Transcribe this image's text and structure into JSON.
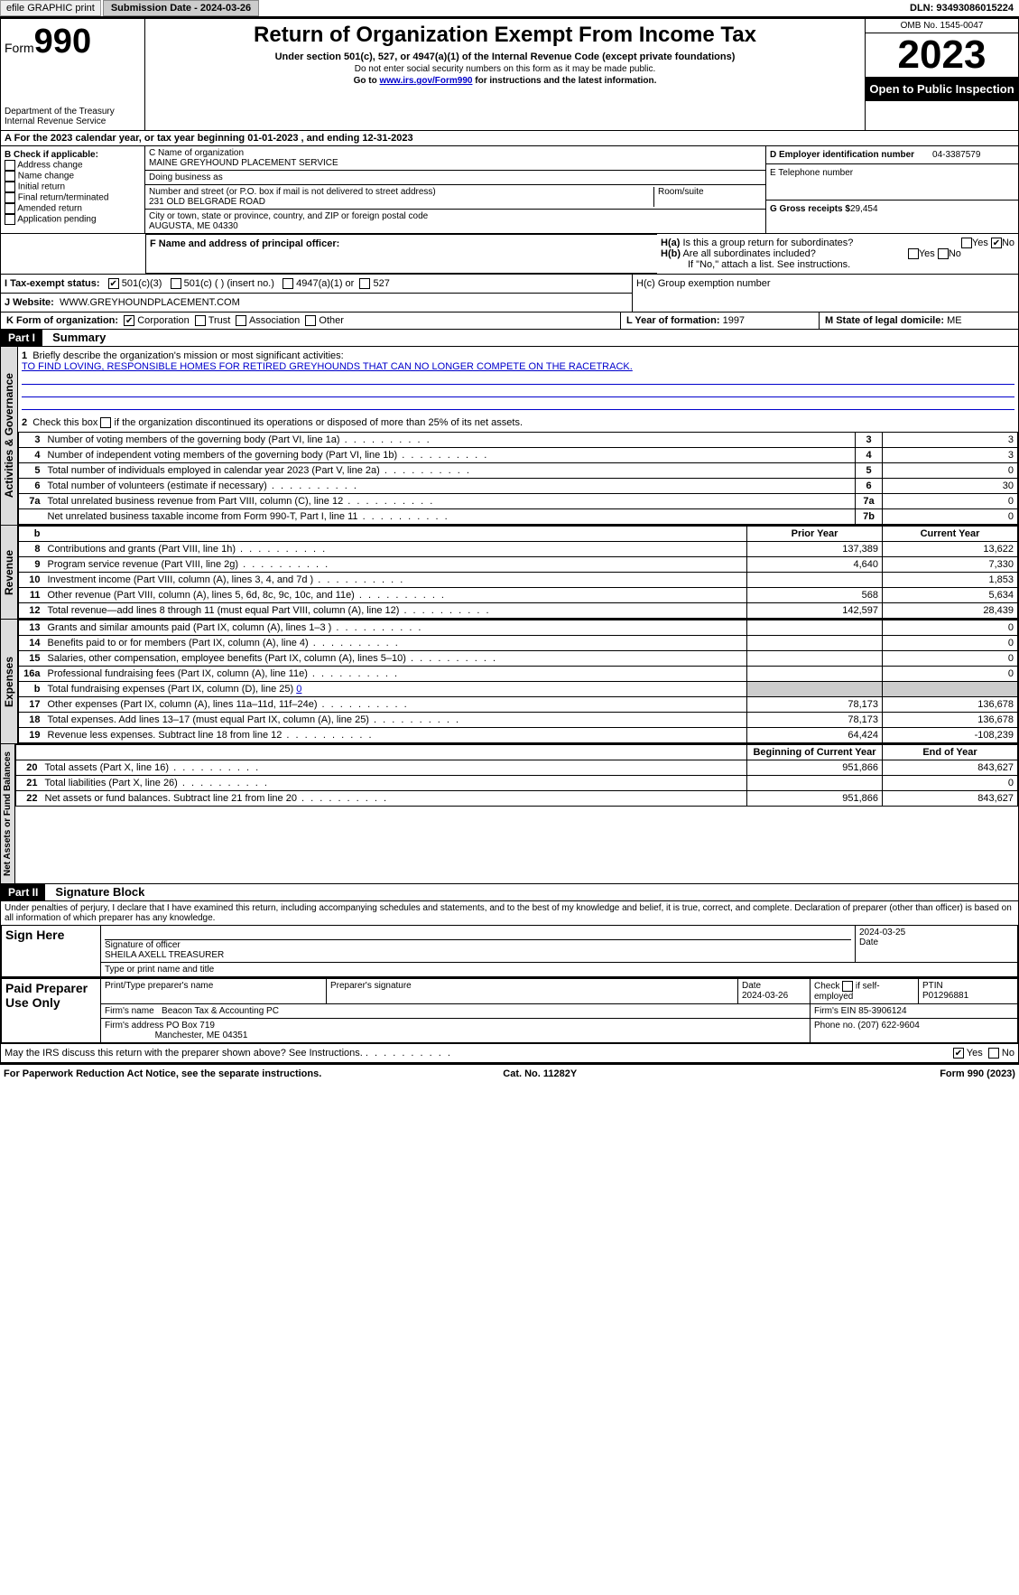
{
  "topbar": {
    "efile_btn": "efile GRAPHIC print",
    "submission_label": "Submission Date - 2024-03-26",
    "dln_label": "DLN: 93493086015224"
  },
  "header": {
    "form_word": "Form",
    "form_num": "990",
    "dept": "Department of the Treasury Internal Revenue Service",
    "title": "Return of Organization Exempt From Income Tax",
    "subtitle": "Under section 501(c), 527, or 4947(a)(1) of the Internal Revenue Code (except private foundations)",
    "note1": "Do not enter social security numbers on this form as it may be made public.",
    "note2_pre": "Go to ",
    "note2_link": "www.irs.gov/Form990",
    "note2_post": " for instructions and the latest information.",
    "omb": "OMB No. 1545-0047",
    "year": "2023",
    "open": "Open to Public Inspection"
  },
  "line_a": "For the 2023 calendar year, or tax year beginning 01-01-2023   , and ending 12-31-2023",
  "box_b": {
    "title": "B Check if applicable:",
    "items": [
      "Address change",
      "Name change",
      "Initial return",
      "Final return/terminated",
      "Amended return",
      "Application pending"
    ]
  },
  "box_c": {
    "name_lbl": "C Name of organization",
    "name": "MAINE GREYHOUND PLACEMENT SERVICE",
    "dba_lbl": "Doing business as",
    "street_lbl": "Number and street (or P.O. box if mail is not delivered to street address)",
    "street": "231 OLD BELGRADE ROAD",
    "room_lbl": "Room/suite",
    "city_lbl": "City or town, state or province, country, and ZIP or foreign postal code",
    "city": "AUGUSTA, ME  04330"
  },
  "box_d": {
    "lbl": "D Employer identification number",
    "val": "04-3387579"
  },
  "box_e": {
    "lbl": "E Telephone number",
    "val": ""
  },
  "box_g": {
    "lbl": "G Gross receipts $",
    "val": "29,454"
  },
  "box_f": {
    "lbl": "F  Name and address of principal officer:",
    "val": ""
  },
  "box_h": {
    "a": "H(a)  Is this a group return for subordinates?",
    "b": "H(b)  Are all subordinates included?",
    "note": "If \"No,\" attach a list. See instructions.",
    "c": "H(c)  Group exemption number",
    "yes": "Yes",
    "no": "No"
  },
  "box_i": {
    "lbl": "I  Tax-exempt status:",
    "o1": "501(c)(3)",
    "o2": "501(c) (  ) (insert no.)",
    "o3": "4947(a)(1) or",
    "o4": "527"
  },
  "box_j": {
    "lbl": "J  Website:",
    "val": "WWW.GREYHOUNDPLACEMENT.COM"
  },
  "box_k": {
    "lbl": "K Form of organization:",
    "o1": "Corporation",
    "o2": "Trust",
    "o3": "Association",
    "o4": "Other"
  },
  "box_l": {
    "lbl": "L Year of formation:",
    "val": "1997"
  },
  "box_m": {
    "lbl": "M State of legal domicile:",
    "val": "ME"
  },
  "part1": {
    "tag": "Part I",
    "title": "Summary"
  },
  "mission_lbl": "Briefly describe the organization's mission or most significant activities:",
  "mission": "TO FIND LOVING, RESPONSIBLE HOMES FOR RETIRED GREYHOUNDS THAT CAN NO LONGER COMPETE ON THE RACETRACK.",
  "line2": "Check this box      if the organization discontinued its operations or disposed of more than 25% of its net assets.",
  "gov_rows": [
    {
      "n": "3",
      "desc": "Number of voting members of the governing body (Part VI, line 1a)",
      "box": "3",
      "val": "3"
    },
    {
      "n": "4",
      "desc": "Number of independent voting members of the governing body (Part VI, line 1b)",
      "box": "4",
      "val": "3"
    },
    {
      "n": "5",
      "desc": "Total number of individuals employed in calendar year 2023 (Part V, line 2a)",
      "box": "5",
      "val": "0"
    },
    {
      "n": "6",
      "desc": "Total number of volunteers (estimate if necessary)",
      "box": "6",
      "val": "30"
    },
    {
      "n": "7a",
      "desc": "Total unrelated business revenue from Part VIII, column (C), line 12",
      "box": "7a",
      "val": "0"
    },
    {
      "n": "",
      "desc": "Net unrelated business taxable income from Form 990-T, Part I, line 11",
      "box": "7b",
      "val": "0"
    }
  ],
  "col_hdr": {
    "b": "b",
    "prior": "Prior Year",
    "current": "Current Year"
  },
  "rev_rows": [
    {
      "n": "8",
      "desc": "Contributions and grants (Part VIII, line 1h)",
      "p": "137,389",
      "c": "13,622"
    },
    {
      "n": "9",
      "desc": "Program service revenue (Part VIII, line 2g)",
      "p": "4,640",
      "c": "7,330"
    },
    {
      "n": "10",
      "desc": "Investment income (Part VIII, column (A), lines 3, 4, and 7d )",
      "p": "",
      "c": "1,853"
    },
    {
      "n": "11",
      "desc": "Other revenue (Part VIII, column (A), lines 5, 6d, 8c, 9c, 10c, and 11e)",
      "p": "568",
      "c": "5,634"
    },
    {
      "n": "12",
      "desc": "Total revenue—add lines 8 through 11 (must equal Part VIII, column (A), line 12)",
      "p": "142,597",
      "c": "28,439"
    }
  ],
  "exp_rows": [
    {
      "n": "13",
      "desc": "Grants and similar amounts paid (Part IX, column (A), lines 1–3 )",
      "p": "",
      "c": "0"
    },
    {
      "n": "14",
      "desc": "Benefits paid to or for members (Part IX, column (A), line 4)",
      "p": "",
      "c": "0"
    },
    {
      "n": "15",
      "desc": "Salaries, other compensation, employee benefits (Part IX, column (A), lines 5–10)",
      "p": "",
      "c": "0"
    },
    {
      "n": "16a",
      "desc": "Professional fundraising fees (Part IX, column (A), line 11e)",
      "p": "",
      "c": "0"
    }
  ],
  "exp_b": {
    "n": "b",
    "desc": "Total fundraising expenses (Part IX, column (D), line 25)",
    "val": "0"
  },
  "exp_rows2": [
    {
      "n": "17",
      "desc": "Other expenses (Part IX, column (A), lines 11a–11d, 11f–24e)",
      "p": "78,173",
      "c": "136,678"
    },
    {
      "n": "18",
      "desc": "Total expenses. Add lines 13–17 (must equal Part IX, column (A), line 25)",
      "p": "78,173",
      "c": "136,678"
    },
    {
      "n": "19",
      "desc": "Revenue less expenses. Subtract line 18 from line 12",
      "p": "64,424",
      "c": "-108,239"
    }
  ],
  "na_hdr": {
    "begin": "Beginning of Current Year",
    "end": "End of Year"
  },
  "na_rows": [
    {
      "n": "20",
      "desc": "Total assets (Part X, line 16)",
      "p": "951,866",
      "c": "843,627"
    },
    {
      "n": "21",
      "desc": "Total liabilities (Part X, line 26)",
      "p": "",
      "c": "0"
    },
    {
      "n": "22",
      "desc": "Net assets or fund balances. Subtract line 21 from line 20",
      "p": "951,866",
      "c": "843,627"
    }
  ],
  "vtabs": {
    "gov": "Activities & Governance",
    "rev": "Revenue",
    "exp": "Expenses",
    "na": "Net Assets or Fund Balances"
  },
  "part2": {
    "tag": "Part II",
    "title": "Signature Block"
  },
  "perjury": "Under penalties of perjury, I declare that I have examined this return, including accompanying schedules and statements, and to the best of my knowledge and belief, it is true, correct, and complete. Declaration of preparer (other than officer) is based on all information of which preparer has any knowledge.",
  "sign": {
    "here": "Sign Here",
    "sig_officer": "Signature of officer",
    "date": "Date",
    "sig_date": "2024-03-25",
    "name_title": "SHEILA AXELL TREASURER",
    "type_lbl": "Type or print name and title"
  },
  "paid": {
    "title": "Paid Preparer Use Only",
    "prep_name_lbl": "Print/Type preparer's name",
    "prep_sig_lbl": "Preparer's signature",
    "date_lbl": "Date",
    "date_val": "2024-03-26",
    "check_lbl": "Check        if self-employed",
    "ptin_lbl": "PTIN",
    "ptin": "P01296881",
    "firm_name_lbl": "Firm's name",
    "firm_name": "Beacon Tax & Accounting PC",
    "firm_ein_lbl": "Firm's EIN",
    "firm_ein": "85-3906124",
    "firm_addr_lbl": "Firm's address",
    "firm_addr1": "PO Box 719",
    "firm_addr2": "Manchester, ME  04351",
    "phone_lbl": "Phone no.",
    "phone": "(207) 622-9604"
  },
  "discuss": "May the IRS discuss this return with the preparer shown above? See Instructions.",
  "footer": {
    "left": "For Paperwork Reduction Act Notice, see the separate instructions.",
    "mid": "Cat. No. 11282Y",
    "right_pre": "Form ",
    "right_form": "990",
    "right_post": " (2023)"
  }
}
